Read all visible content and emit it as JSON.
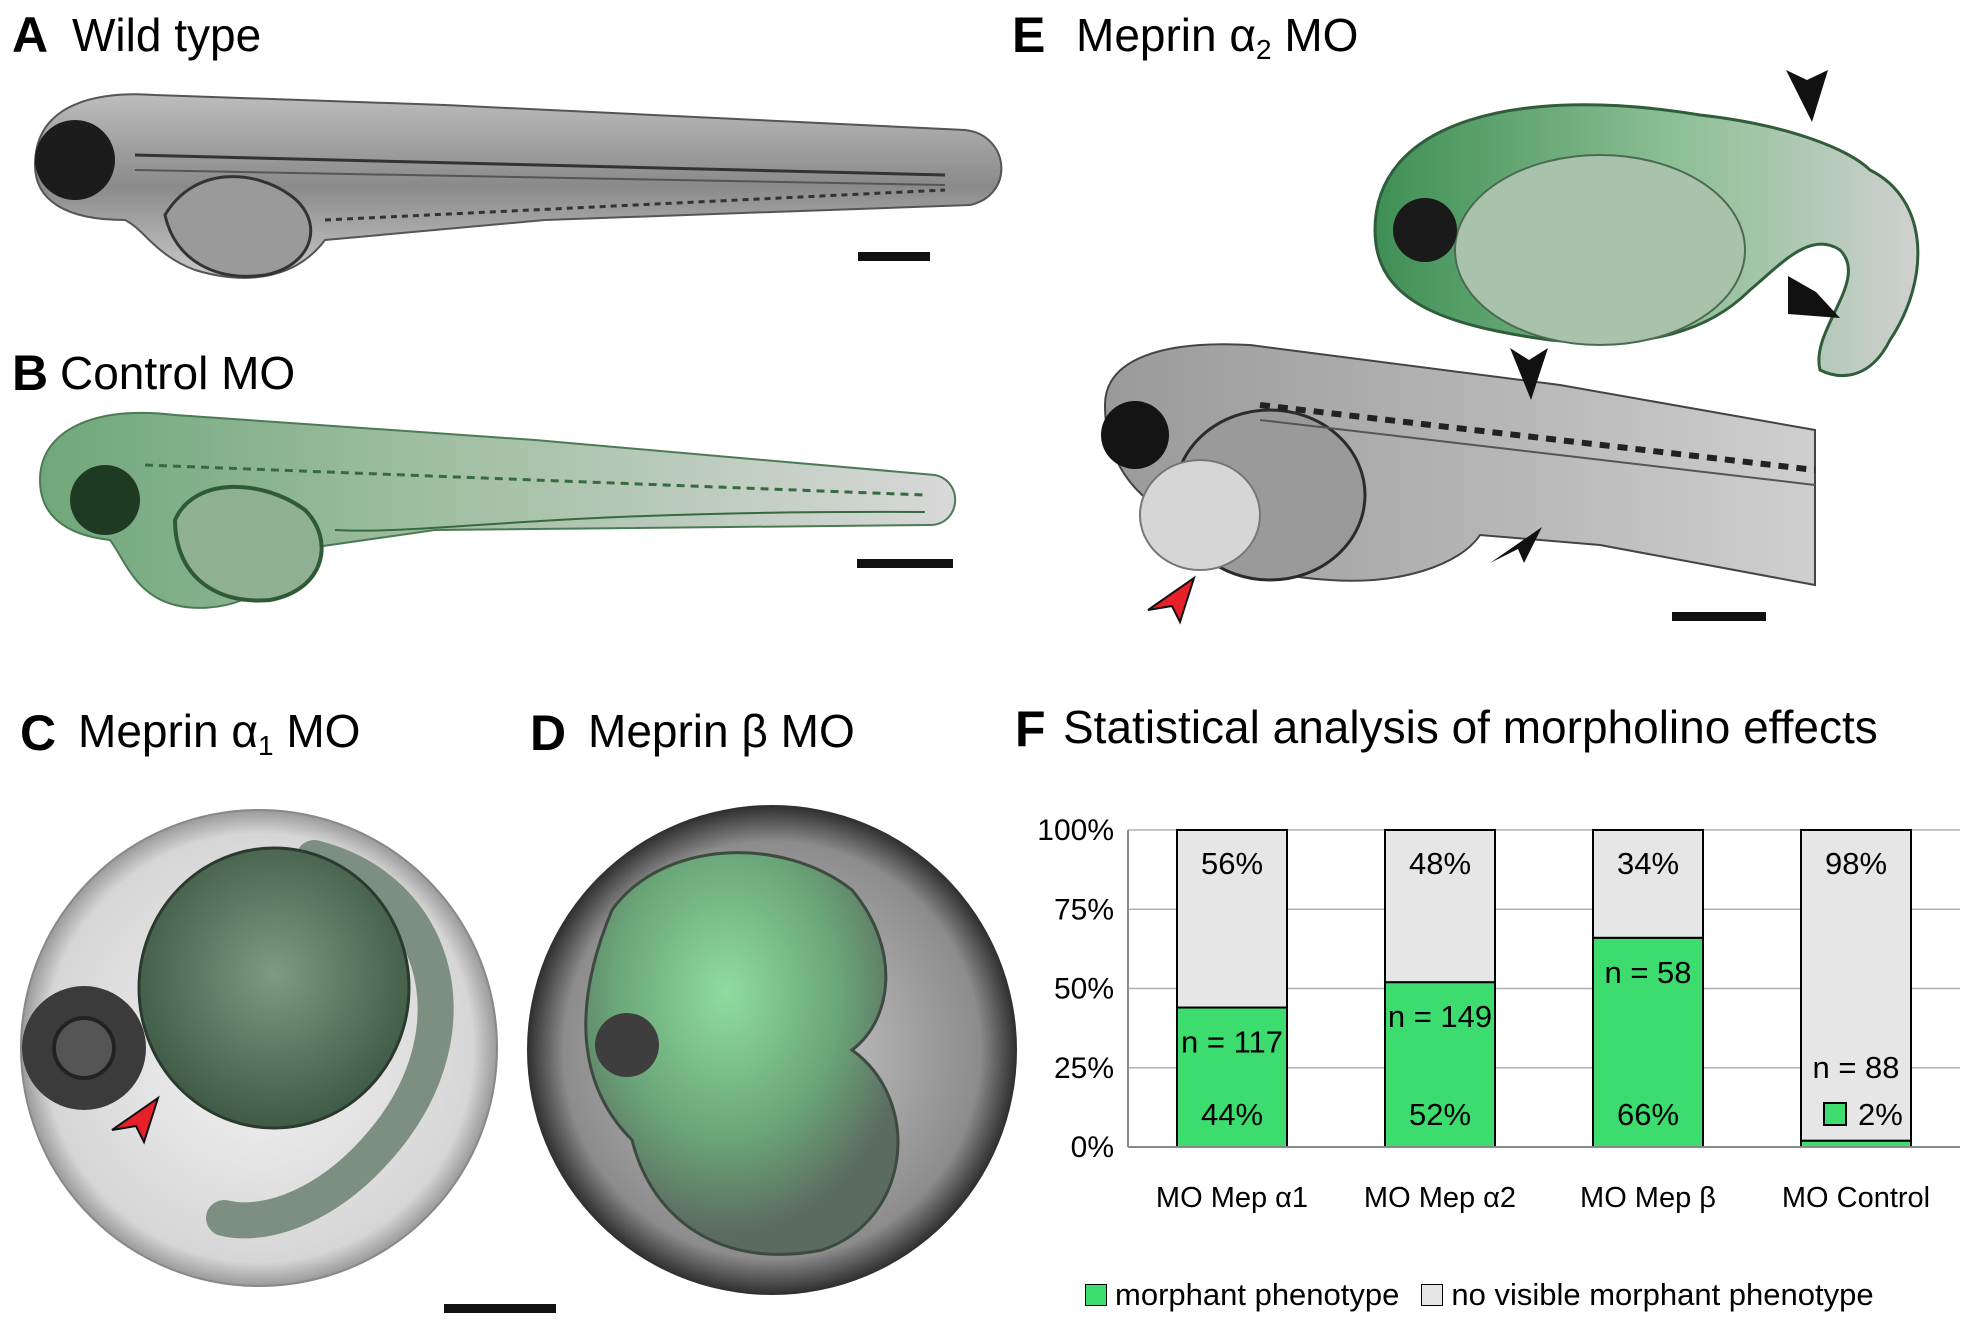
{
  "panels": {
    "A": {
      "label": "A",
      "title": "Wild type"
    },
    "B": {
      "label": "B",
      "title": "Control MO"
    },
    "C": {
      "label": "C",
      "title_prefix": "Meprin α",
      "title_sub": "1",
      "title_suffix": " MO"
    },
    "D": {
      "label": "D",
      "title": "Meprin β MO"
    },
    "E": {
      "label": "E",
      "title_prefix": "Meprin α",
      "title_sub": "2",
      "title_suffix": " MO"
    },
    "F": {
      "label": "F",
      "title": "Statistical analysis of morpholino effects"
    }
  },
  "colors": {
    "morphant": "#3ddc6f",
    "no_morphant": "#e6e6e6",
    "arrow_black": "#111111",
    "arrow_red": "#e8202a"
  },
  "icons": [
    "scale-bar",
    "arrowhead-black",
    "arrowhead-red"
  ],
  "chart_data": {
    "type": "bar",
    "stacked": true,
    "title": "Statistical analysis of morpholino effects",
    "categories": [
      "MO Mep α1",
      "MO Mep α2",
      "MO Mep β",
      "MO Control"
    ],
    "series": [
      {
        "name": "morphant phenotype",
        "values": [
          44,
          52,
          66,
          2
        ],
        "labels": [
          "44%",
          "52%",
          "66%",
          "2%"
        ]
      },
      {
        "name": "no visible morphant phenotype",
        "values": [
          56,
          48,
          34,
          98
        ],
        "labels": [
          "56%",
          "48%",
          "34%",
          "98%"
        ]
      }
    ],
    "n_labels": [
      "n = 117",
      "n = 149",
      "n = 58",
      "n = 88"
    ],
    "yticks": [
      "0%",
      "25%",
      "50%",
      "75%",
      "100%"
    ],
    "ylim": [
      0,
      100
    ],
    "grid": true,
    "legend": "bottom"
  }
}
